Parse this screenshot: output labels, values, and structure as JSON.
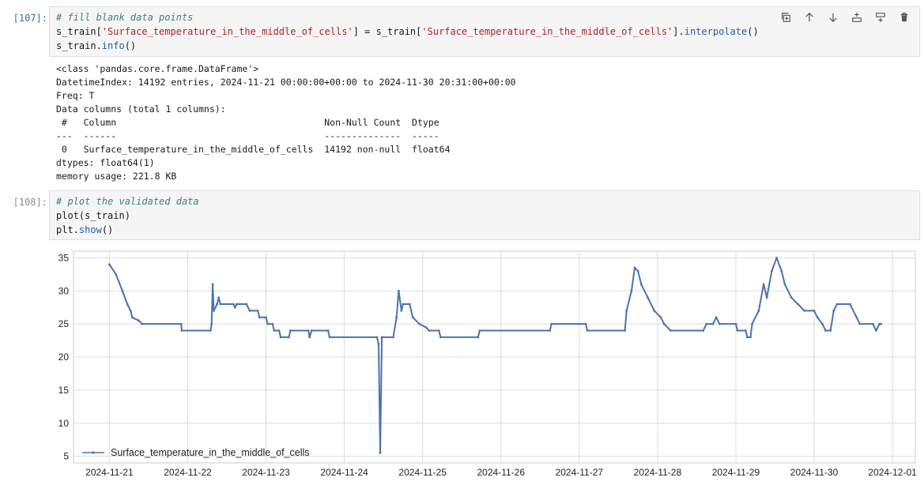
{
  "cells": [
    {
      "prompt": "[107]:",
      "code": {
        "comment": "# fill blank data points",
        "line2_var": "s_train[",
        "line2_str1": "'Surface_temperature_in_the_middle_of_cells'",
        "line2_mid": "] = s_train[",
        "line2_str2": "'Surface_temperature_in_the_middle_of_cells'",
        "line2_end1": "].",
        "line2_fn": "interpolate",
        "line2_end2": "()",
        "line3_var": "s_train.",
        "line3_fn": "info",
        "line3_end": "()"
      },
      "output": [
        "<class 'pandas.core.frame.DataFrame'>",
        "DatetimeIndex: 14192 entries, 2024-11-21 00:00:00+00:00 to 2024-11-30 20:31:00+00:00",
        "Freq: T",
        "Data columns (total 1 columns):",
        " #   Column                                      Non-Null Count  Dtype  ",
        "---  ------                                      --------------  -----  ",
        " 0   Surface_temperature_in_the_middle_of_cells  14192 non-null  float64",
        "dtypes: float64(1)",
        "memory usage: 221.8 KB"
      ]
    },
    {
      "prompt": "[108]:",
      "code": {
        "comment": "# plot the validated data",
        "line2": "plot(s_train)",
        "line3_var": "plt.",
        "line3_fn": "show",
        "line3_end": "()"
      }
    }
  ],
  "toolbar": {
    "icons": [
      "duplicate-icon",
      "move-up-icon",
      "move-down-icon",
      "insert-above-icon",
      "insert-below-icon",
      "delete-icon"
    ]
  },
  "chart_data": {
    "type": "line",
    "title": "",
    "xlabel": "",
    "ylabel": "",
    "x_ticks": [
      "2024-11-21",
      "2024-11-22",
      "2024-11-23",
      "2024-11-24",
      "2024-11-25",
      "2024-11-26",
      "2024-11-27",
      "2024-11-28",
      "2024-11-29",
      "2024-11-30",
      "2024-12-01"
    ],
    "y_ticks": [
      5,
      10,
      15,
      20,
      25,
      30,
      35
    ],
    "xlim": [
      "2024-11-20T13:00",
      "2024-12-01T07:00"
    ],
    "ylim": [
      4,
      36
    ],
    "grid": true,
    "legend": "lower-left",
    "series": [
      {
        "name": "Surface_temperature_in_the_middle_of_cells",
        "color": "#4c72b0",
        "points": [
          [
            "2024-11-21T00:00",
            34
          ],
          [
            "2024-11-21T02:00",
            32.5
          ],
          [
            "2024-11-21T04:00",
            30
          ],
          [
            "2024-11-21T05:30",
            28
          ],
          [
            "2024-11-21T06:30",
            27
          ],
          [
            "2024-11-21T07:00",
            26
          ],
          [
            "2024-11-21T09:00",
            25.5
          ],
          [
            "2024-11-21T10:00",
            25
          ],
          [
            "2024-11-21T22:00",
            25
          ],
          [
            "2024-11-21T22:10",
            24
          ],
          [
            "2024-11-22T07:00",
            24
          ],
          [
            "2024-11-22T07:20",
            25
          ],
          [
            "2024-11-22T07:40",
            31
          ],
          [
            "2024-11-22T08:00",
            27
          ],
          [
            "2024-11-22T09:00",
            28
          ],
          [
            "2024-11-22T09:30",
            29
          ],
          [
            "2024-11-22T10:00",
            28
          ],
          [
            "2024-11-22T14:00",
            28
          ],
          [
            "2024-11-22T14:30",
            27.5
          ],
          [
            "2024-11-22T15:00",
            28
          ],
          [
            "2024-11-22T18:00",
            28
          ],
          [
            "2024-11-22T19:00",
            27
          ],
          [
            "2024-11-22T21:30",
            27
          ],
          [
            "2024-11-22T22:00",
            26
          ],
          [
            "2024-11-23T00:00",
            26
          ],
          [
            "2024-11-23T00:30",
            25
          ],
          [
            "2024-11-23T02:00",
            25
          ],
          [
            "2024-11-23T02:30",
            24
          ],
          [
            "2024-11-23T04:00",
            24
          ],
          [
            "2024-11-23T04:30",
            23
          ],
          [
            "2024-11-23T07:00",
            23
          ],
          [
            "2024-11-23T07:30",
            24
          ],
          [
            "2024-11-23T13:00",
            24
          ],
          [
            "2024-11-23T13:20",
            23
          ],
          [
            "2024-11-23T14:00",
            24
          ],
          [
            "2024-11-23T19:00",
            24
          ],
          [
            "2024-11-23T19:30",
            23
          ],
          [
            "2024-11-24T10:00",
            23
          ],
          [
            "2024-11-24T10:30",
            22
          ],
          [
            "2024-11-24T11:00",
            5.5
          ],
          [
            "2024-11-24T11:30",
            23
          ],
          [
            "2024-11-24T15:00",
            23
          ],
          [
            "2024-11-24T16:00",
            26
          ],
          [
            "2024-11-24T16:40",
            30
          ],
          [
            "2024-11-24T17:30",
            27
          ],
          [
            "2024-11-24T18:00",
            28
          ],
          [
            "2024-11-24T20:00",
            28
          ],
          [
            "2024-11-24T21:00",
            26
          ],
          [
            "2024-11-24T23:00",
            25
          ],
          [
            "2024-11-25T01:00",
            24.5
          ],
          [
            "2024-11-25T02:00",
            24
          ],
          [
            "2024-11-25T05:00",
            24
          ],
          [
            "2024-11-25T05:30",
            23
          ],
          [
            "2024-11-25T17:00",
            23
          ],
          [
            "2024-11-25T17:30",
            24
          ],
          [
            "2024-11-26T15:00",
            24
          ],
          [
            "2024-11-26T15:30",
            25
          ],
          [
            "2024-11-27T02:00",
            25
          ],
          [
            "2024-11-27T02:30",
            24
          ],
          [
            "2024-11-27T14:00",
            24
          ],
          [
            "2024-11-27T14:30",
            27
          ],
          [
            "2024-11-27T16:00",
            30
          ],
          [
            "2024-11-27T17:00",
            33.5
          ],
          [
            "2024-11-27T18:00",
            33
          ],
          [
            "2024-11-27T19:00",
            31
          ],
          [
            "2024-11-27T21:00",
            29
          ],
          [
            "2024-11-27T23:00",
            27
          ],
          [
            "2024-11-28T01:00",
            26
          ],
          [
            "2024-11-28T02:00",
            25
          ],
          [
            "2024-11-28T04:00",
            24
          ],
          [
            "2024-11-28T14:00",
            24
          ],
          [
            "2024-11-28T15:00",
            25
          ],
          [
            "2024-11-28T17:00",
            25
          ],
          [
            "2024-11-28T18:00",
            26
          ],
          [
            "2024-11-28T19:00",
            25
          ],
          [
            "2024-11-29T00:00",
            25
          ],
          [
            "2024-11-29T00:30",
            24
          ],
          [
            "2024-11-29T03:00",
            24
          ],
          [
            "2024-11-29T03:30",
            23
          ],
          [
            "2024-11-29T04:30",
            23
          ],
          [
            "2024-11-29T05:00",
            25
          ],
          [
            "2024-11-29T07:00",
            27
          ],
          [
            "2024-11-29T08:30",
            31
          ],
          [
            "2024-11-29T09:30",
            29
          ],
          [
            "2024-11-29T11:00",
            33
          ],
          [
            "2024-11-29T12:30",
            35
          ],
          [
            "2024-11-29T14:00",
            33
          ],
          [
            "2024-11-29T15:00",
            31
          ],
          [
            "2024-11-29T17:00",
            29
          ],
          [
            "2024-11-29T19:00",
            28
          ],
          [
            "2024-11-29T21:00",
            27
          ],
          [
            "2024-11-30T00:00",
            27
          ],
          [
            "2024-11-30T01:00",
            26
          ],
          [
            "2024-11-30T02:30",
            25
          ],
          [
            "2024-11-30T03:30",
            24
          ],
          [
            "2024-11-30T05:00",
            24
          ],
          [
            "2024-11-30T06:00",
            27
          ],
          [
            "2024-11-30T07:00",
            28
          ],
          [
            "2024-11-30T11:00",
            28
          ],
          [
            "2024-11-30T13:00",
            26
          ],
          [
            "2024-11-30T14:00",
            25
          ],
          [
            "2024-11-30T18:00",
            25
          ],
          [
            "2024-11-30T19:00",
            24
          ],
          [
            "2024-11-30T20:00",
            25
          ],
          [
            "2024-11-30T20:31",
            25
          ]
        ]
      }
    ]
  }
}
